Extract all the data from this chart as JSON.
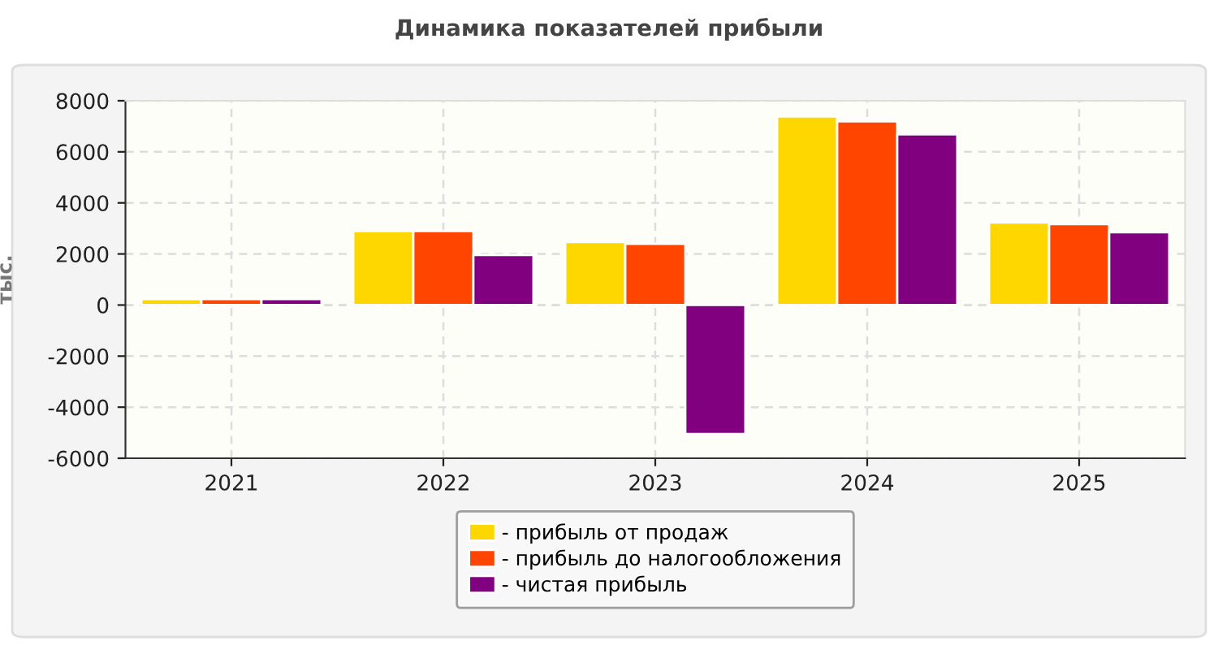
{
  "chart_data": {
    "type": "bar",
    "title": "Динамика показателей прибыли",
    "ylabel": "тыс.",
    "categories": [
      "2021",
      "2022",
      "2023",
      "2024",
      "2025"
    ],
    "series": [
      {
        "name": "- прибыль от продаж",
        "color": "#ffd700",
        "values": [
          230,
          2900,
          2470,
          7380,
          3230
        ]
      },
      {
        "name": "- прибыль до налогообложения",
        "color": "#ff4500",
        "values": [
          230,
          2900,
          2400,
          7190,
          3170
        ]
      },
      {
        "name": "- чистая прибыль",
        "color": "#800080",
        "values": [
          230,
          1960,
          -5050,
          6680,
          2850
        ]
      }
    ],
    "ylim": [
      -6000,
      8000
    ],
    "yticks": [
      -6000,
      -4000,
      -2000,
      0,
      2000,
      4000,
      6000,
      8000
    ],
    "grid": true,
    "legend": "bottom"
  }
}
